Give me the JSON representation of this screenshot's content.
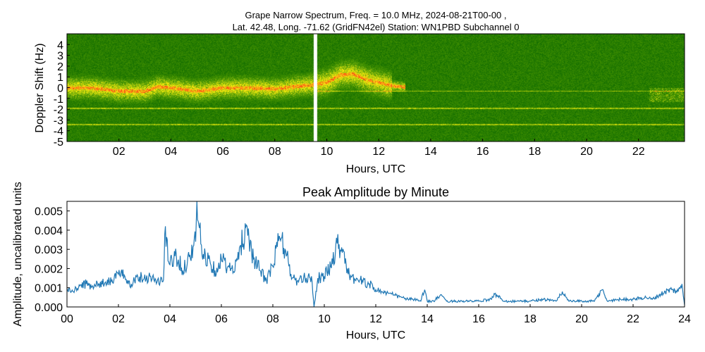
{
  "chart_data": [
    {
      "type": "heatmap",
      "title_line1": "Grape Narrow Spectrum, Freq. = 10.0 MHz, 2024-08-21T00-00 ,",
      "title_line2": "Lat.  42.48, Long. -71.62 (GridFN42el) Station: WN1PBD Subchannel 0",
      "xlabel": "Hours, UTC",
      "ylabel": "Doppler Shift (Hz)",
      "xlim": [
        0,
        23.77
      ],
      "ylim": [
        -5,
        5
      ],
      "xticks": [
        "02",
        "04",
        "06",
        "08",
        "10",
        "12",
        "14",
        "16",
        "18",
        "20",
        "22"
      ],
      "xtick_values": [
        2,
        4,
        6,
        8,
        10,
        12,
        14,
        16,
        18,
        20,
        22
      ],
      "yticks": [
        "4",
        "3",
        "2",
        "1",
        "0",
        "-1",
        "-2",
        "-3",
        "-4",
        "-5"
      ],
      "ytick_values": [
        4,
        3,
        2,
        1,
        0,
        -1,
        -2,
        -3,
        -4,
        -5
      ],
      "gap_hours": 9.55,
      "carrier_lines_hz": [
        -0.3,
        -1.9,
        -3.4
      ],
      "doppler_trace": {
        "hours": [
          0,
          1,
          2,
          3,
          3.5,
          4,
          5,
          6,
          7,
          8,
          9,
          9.5,
          10,
          10.5,
          11,
          11.5,
          12,
          12.5,
          13
        ],
        "hz": [
          0,
          0,
          -0.3,
          -0.3,
          0.1,
          0,
          -0.3,
          0,
          0,
          -0.1,
          0.2,
          0.3,
          0.5,
          1.2,
          1.3,
          0.8,
          0.5,
          0.2,
          0.1
        ]
      }
    },
    {
      "type": "line",
      "title": "Peak Amplitude by Minute",
      "xlabel": "Hours, UTC",
      "ylabel": "Amplitude, uncalibrated units",
      "xlim": [
        0,
        24
      ],
      "ylim": [
        0,
        0.0055
      ],
      "xticks": [
        "00",
        "02",
        "04",
        "06",
        "08",
        "10",
        "12",
        "14",
        "16",
        "18",
        "20",
        "22",
        "24"
      ],
      "xtick_values": [
        0,
        2,
        4,
        6,
        8,
        10,
        12,
        14,
        16,
        18,
        20,
        22,
        24
      ],
      "yticks": [
        "0.000",
        "0.001",
        "0.002",
        "0.003",
        "0.004",
        "0.005"
      ],
      "ytick_values": [
        0,
        0.001,
        0.002,
        0.003,
        0.004,
        0.005
      ],
      "color": "#1f77b4",
      "x": [
        0,
        0.25,
        0.5,
        0.75,
        1,
        1.25,
        1.5,
        1.75,
        2,
        2.25,
        2.5,
        2.75,
        3,
        3.25,
        3.5,
        3.75,
        3.8,
        4,
        4.25,
        4.5,
        4.75,
        5,
        5.05,
        5.25,
        5.5,
        5.75,
        6,
        6.25,
        6.5,
        6.75,
        7,
        7.25,
        7.5,
        7.75,
        8,
        8.25,
        8.5,
        8.75,
        9,
        9.25,
        9.5,
        9.6,
        9.75,
        10,
        10.25,
        10.5,
        10.75,
        11,
        11.25,
        11.5,
        11.75,
        12,
        12.25,
        12.5,
        12.75,
        13,
        13.25,
        13.5,
        13.75,
        13.9,
        14,
        14.25,
        14.5,
        14.75,
        15,
        15.5,
        16,
        16.5,
        16.6,
        17,
        17.5,
        18,
        18.5,
        19,
        19.25,
        19.5,
        20,
        20.5,
        20.8,
        21,
        21.5,
        22,
        22.5,
        22.75,
        23,
        23.25,
        23.5,
        23.75,
        23.9,
        24
      ],
      "y": [
        0.0009,
        0.0008,
        0.0011,
        0.0012,
        0.0011,
        0.0012,
        0.0013,
        0.0014,
        0.0017,
        0.0016,
        0.0012,
        0.0016,
        0.0015,
        0.0016,
        0.0013,
        0.0014,
        0.0038,
        0.0022,
        0.0027,
        0.0019,
        0.0026,
        0.0034,
        0.0055,
        0.0027,
        0.0025,
        0.0019,
        0.0025,
        0.0021,
        0.0018,
        0.0032,
        0.0042,
        0.0025,
        0.0019,
        0.0014,
        0.0021,
        0.0037,
        0.0029,
        0.0015,
        0.0013,
        0.0015,
        0.0016,
        0.0,
        0.0015,
        0.0016,
        0.0021,
        0.0033,
        0.0029,
        0.0014,
        0.0015,
        0.0013,
        0.0012,
        0.0009,
        0.0008,
        0.0007,
        0.0006,
        0.0005,
        0.0004,
        0.0004,
        0.0003,
        0.0009,
        0.0003,
        0.0003,
        0.0006,
        0.0003,
        0.0003,
        0.0003,
        0.0003,
        0.0004,
        0.0007,
        0.0003,
        0.0003,
        0.0003,
        0.0004,
        0.0003,
        0.0008,
        0.0003,
        0.0003,
        0.0003,
        0.0009,
        0.0003,
        0.0004,
        0.0004,
        0.0005,
        0.0004,
        0.0006,
        0.0008,
        0.0009,
        0.0008,
        0.0012,
        0.0001
      ]
    }
  ]
}
